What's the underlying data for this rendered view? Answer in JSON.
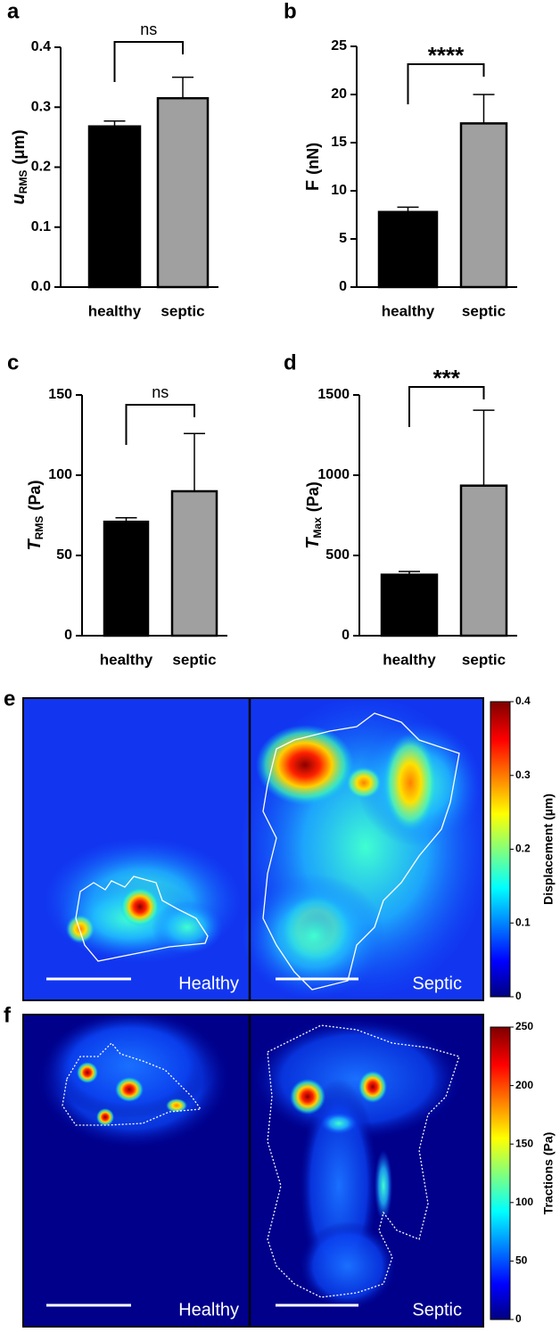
{
  "chart_data": [
    {
      "type": "bar",
      "label": "a",
      "ylabel": {
        "main": "u",
        "sub": "RMS",
        "unit": "(μm)"
      },
      "categories": [
        "healthy",
        "septic"
      ],
      "values": [
        0.268,
        0.315
      ],
      "errors": [
        0.009,
        0.035
      ],
      "colors": [
        "#000000",
        "#a0a0a0"
      ],
      "ylim": [
        0,
        0.4
      ],
      "yticks": [
        {
          "value": 0,
          "label": "0.0"
        },
        0.1,
        0.2,
        0.3,
        0.4
      ],
      "annotation": "ns"
    },
    {
      "type": "bar",
      "label": "b",
      "ylabel": {
        "main": "F",
        "unit": "(nN)"
      },
      "categories": [
        "healthy",
        "septic"
      ],
      "values": [
        7.8,
        17
      ],
      "errors": [
        0.5,
        3
      ],
      "colors": [
        "#000000",
        "#a0a0a0"
      ],
      "ylim": [
        0,
        25
      ],
      "yticks": [
        0,
        5,
        10,
        15,
        20,
        25
      ],
      "annotation": "****"
    },
    {
      "type": "bar",
      "label": "c",
      "ylabel": {
        "main": "T",
        "sub": "RMS",
        "unit": "(Pa)"
      },
      "categories": [
        "healthy",
        "septic"
      ],
      "values": [
        71,
        90
      ],
      "errors": [
        2.5,
        36
      ],
      "colors": [
        "#000000",
        "#a0a0a0"
      ],
      "ylim": [
        0,
        150
      ],
      "yticks": [
        0,
        50,
        100,
        150
      ],
      "annotation": "ns"
    },
    {
      "type": "bar",
      "label": "d",
      "ylabel": {
        "main": "T",
        "sub": "Max",
        "unit": "(Pa)"
      },
      "categories": [
        "healthy",
        "septic"
      ],
      "values": [
        380,
        935
      ],
      "errors": [
        20,
        470
      ],
      "colors": [
        "#000000",
        "#a0a0a0"
      ],
      "ylim": [
        0,
        1500
      ],
      "yticks": [
        0,
        500,
        1000,
        1500
      ],
      "annotation": "***"
    }
  ],
  "heatmaps": [
    {
      "label": "e",
      "panels": [
        "Healthy",
        "Septic"
      ],
      "colorbar": {
        "label": "Displacement (µm)",
        "lim": [
          0,
          0.4
        ],
        "ticks": [
          0,
          0.1,
          0.2,
          0.3,
          0.4
        ]
      }
    },
    {
      "label": "f",
      "panels": [
        "Healthy",
        "Septic"
      ],
      "colorbar": {
        "label": "Tractions (Pa)",
        "lim": [
          0,
          250
        ],
        "ticks": [
          0,
          50,
          100,
          150,
          200,
          250
        ]
      }
    }
  ]
}
